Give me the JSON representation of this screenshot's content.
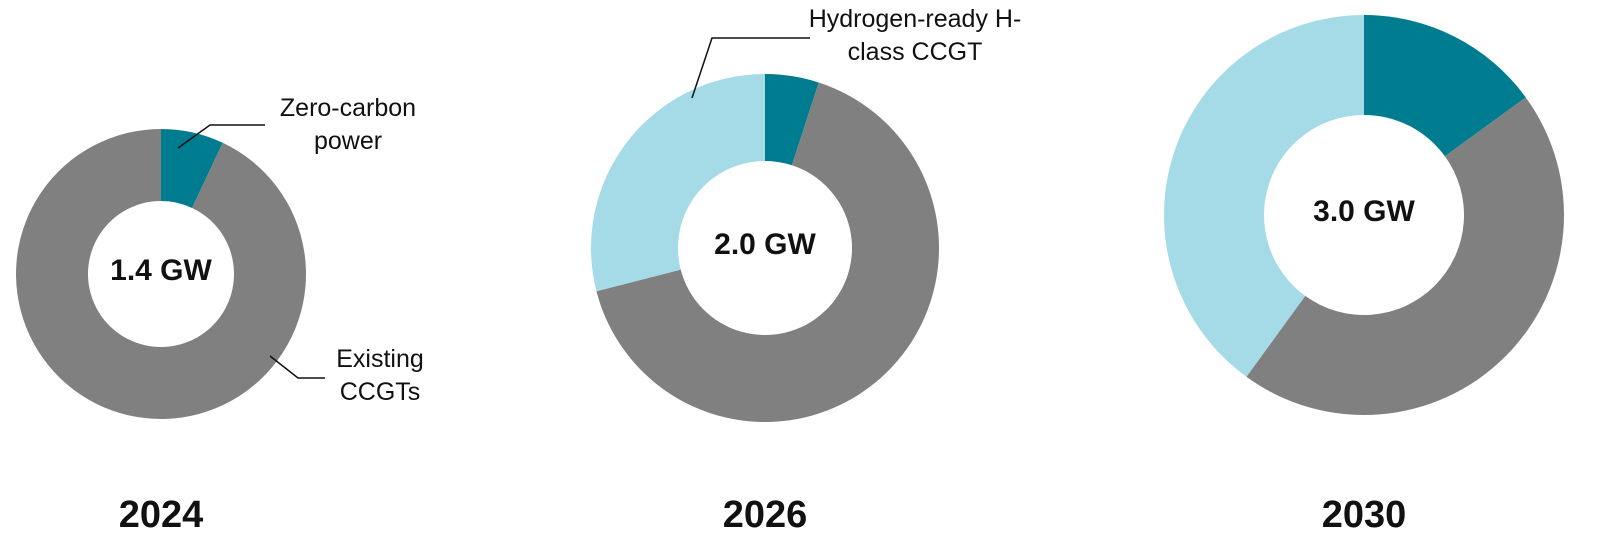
{
  "chart_data": [
    {
      "type": "donut",
      "title": "2024",
      "center_label": "1.4 GW",
      "categories": [
        "Zero-carbon power",
        "Existing CCGTs"
      ],
      "values": [
        7,
        93
      ],
      "colors": [
        "#007c91",
        "#808080"
      ]
    },
    {
      "type": "donut",
      "title": "2026",
      "center_label": "2.0 GW",
      "categories": [
        null,
        null,
        "Hydrogen-ready H-class CCGT"
      ],
      "values": [
        5,
        66,
        29
      ],
      "colors": [
        "#007c91",
        "#808080",
        "#a5dbe6"
      ]
    },
    {
      "type": "donut",
      "title": "2030",
      "center_label": "3.0 GW",
      "categories": [
        null,
        null,
        null
      ],
      "values": [
        15,
        45,
        40
      ],
      "colors": [
        "#007c91",
        "#808080",
        "#a5dbe6"
      ]
    }
  ]
}
